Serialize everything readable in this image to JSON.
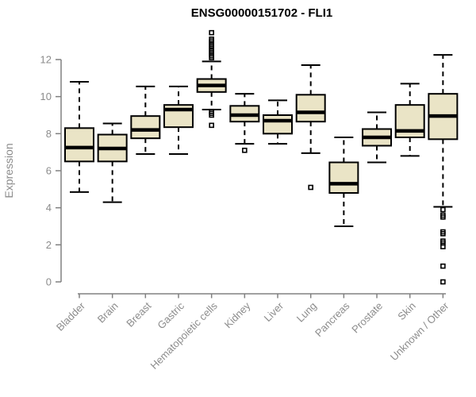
{
  "chart_data": {
    "type": "boxplot",
    "title": "ENSG00000151702 - FLI1",
    "xlabel": "",
    "ylabel": "Expression",
    "ylim": [
      0,
      13.6
    ],
    "yticks": [
      0,
      2,
      4,
      6,
      8,
      10,
      12
    ],
    "grid": false,
    "legend": false,
    "categories": [
      "Bladder",
      "Brain",
      "Breast",
      "Gastric",
      "Hematopoietic cells",
      "Kidney",
      "Liver",
      "Lung",
      "Pancreas",
      "Prostate",
      "Skin",
      "Unknown / Other"
    ],
    "boxes": [
      {
        "category": "Bladder",
        "whisker_low": 4.85,
        "q1": 6.5,
        "median": 7.25,
        "q3": 8.3,
        "whisker_high": 10.8,
        "outliers": []
      },
      {
        "category": "Brain",
        "whisker_low": 4.3,
        "q1": 6.5,
        "median": 7.2,
        "q3": 7.95,
        "whisker_high": 8.55,
        "outliers": []
      },
      {
        "category": "Breast",
        "whisker_low": 6.9,
        "q1": 7.75,
        "median": 8.2,
        "q3": 8.95,
        "whisker_high": 10.55,
        "outliers": []
      },
      {
        "category": "Gastric",
        "whisker_low": 6.9,
        "q1": 8.35,
        "median": 9.3,
        "q3": 9.55,
        "whisker_high": 10.55,
        "outliers": []
      },
      {
        "category": "Hematopoietic cells",
        "whisker_low": 9.3,
        "q1": 10.25,
        "median": 10.6,
        "q3": 10.95,
        "whisker_high": 11.9,
        "outliers": [
          13.45,
          13.1,
          13.0,
          12.9,
          12.8,
          12.7,
          12.6,
          12.5,
          12.4,
          12.3,
          12.2,
          12.1,
          9.2,
          9.1,
          9.0,
          8.45
        ]
      },
      {
        "category": "Kidney",
        "whisker_low": 7.45,
        "q1": 8.65,
        "median": 9.0,
        "q3": 9.5,
        "whisker_high": 10.15,
        "outliers": [
          7.1
        ]
      },
      {
        "category": "Liver",
        "whisker_low": 7.45,
        "q1": 8.0,
        "median": 8.7,
        "q3": 9.0,
        "whisker_high": 9.8,
        "outliers": []
      },
      {
        "category": "Lung",
        "whisker_low": 6.95,
        "q1": 8.65,
        "median": 9.15,
        "q3": 10.1,
        "whisker_high": 11.7,
        "outliers": [
          5.1
        ]
      },
      {
        "category": "Pancreas",
        "whisker_low": 3.0,
        "q1": 4.8,
        "median": 5.3,
        "q3": 6.45,
        "whisker_high": 7.8,
        "outliers": []
      },
      {
        "category": "Prostate",
        "whisker_low": 6.45,
        "q1": 7.35,
        "median": 7.8,
        "q3": 8.25,
        "whisker_high": 9.15,
        "outliers": []
      },
      {
        "category": "Skin",
        "whisker_low": 6.8,
        "q1": 7.8,
        "median": 8.15,
        "q3": 9.55,
        "whisker_high": 10.7,
        "outliers": []
      },
      {
        "category": "Unknown / Other",
        "whisker_low": 4.05,
        "q1": 7.7,
        "median": 8.95,
        "q3": 10.15,
        "whisker_high": 12.25,
        "outliers": [
          3.9,
          3.6,
          3.5,
          2.7,
          2.6,
          2.2,
          2.1,
          1.9,
          0.85,
          0.0
        ]
      }
    ],
    "colors": {
      "box_fill": "#EAE4C6",
      "box_stroke": "#000000",
      "median": "#000000",
      "whisker": "#000000",
      "outlier": "#000000",
      "axis": "#808080",
      "tick_label": "#8C8C8C",
      "title": "#000000",
      "background": "#FFFFFF"
    }
  }
}
